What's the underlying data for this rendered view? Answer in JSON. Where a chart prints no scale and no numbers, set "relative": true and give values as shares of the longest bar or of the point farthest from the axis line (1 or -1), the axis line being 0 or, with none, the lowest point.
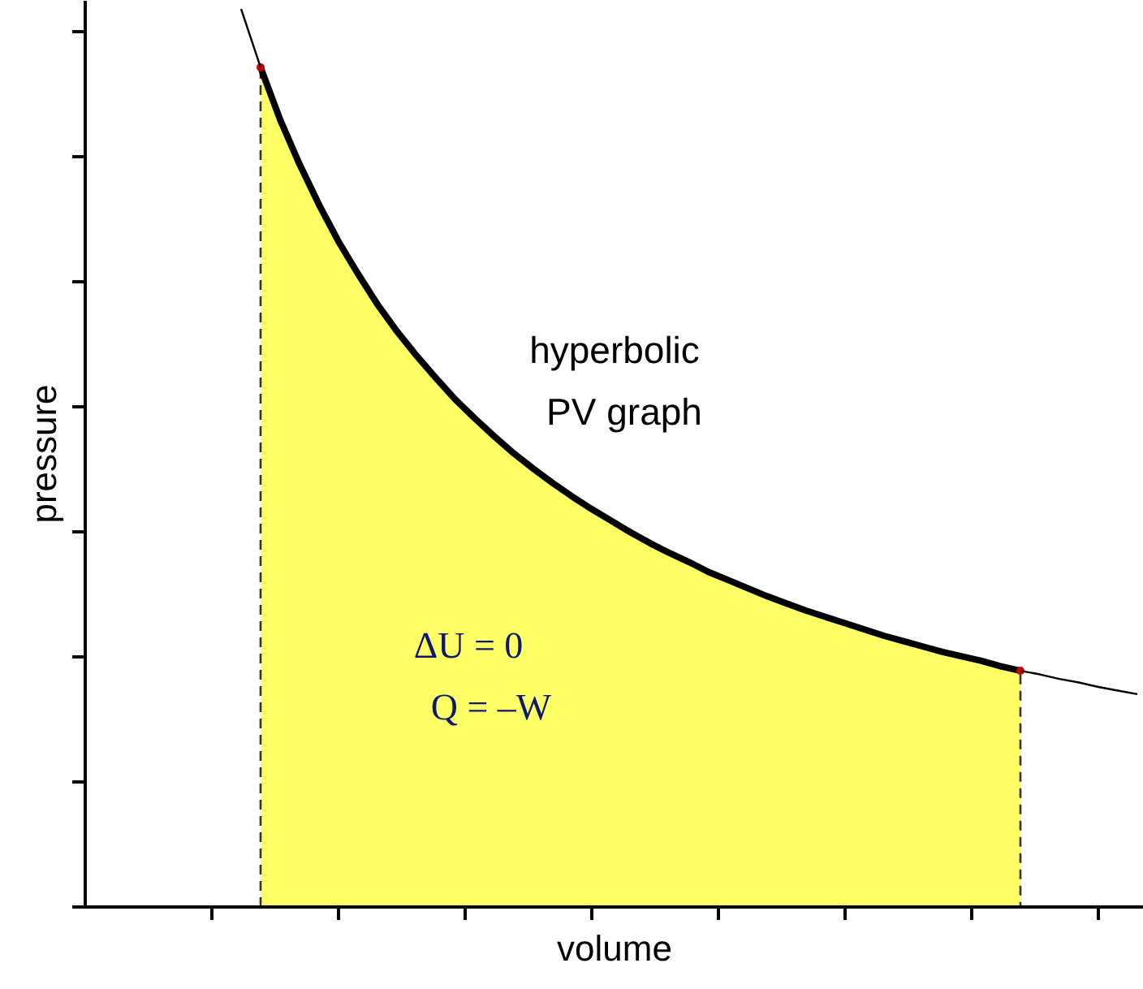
{
  "chart_data": {
    "type": "line",
    "relative": true,
    "xlabel": "volume",
    "ylabel": "pressure",
    "categories": [
      null,
      null,
      null,
      null,
      null,
      null,
      null,
      null,
      null,
      null,
      null,
      null,
      null,
      null,
      null,
      null,
      null,
      null,
      null,
      null,
      null,
      null,
      null,
      null,
      null,
      null,
      null,
      null,
      null,
      null,
      null,
      null,
      null,
      null,
      null,
      null,
      null,
      null,
      null,
      null,
      null,
      null,
      null,
      null,
      null,
      null,
      null
    ],
    "series": [
      {
        "type": "area",
        "color": "#ffff66",
        "values": [
          null,
          0.935,
          0.877,
          0.827,
          0.782,
          0.741,
          0.705,
          0.671,
          0.641,
          0.614,
          0.589,
          0.565,
          0.544,
          0.524,
          0.505,
          0.488,
          0.472,
          0.457,
          0.443,
          0.43,
          0.417,
          0.405,
          0.394,
          0.384,
          0.373,
          0.364,
          0.355,
          0.346,
          0.338,
          0.33,
          0.323,
          0.316,
          0.309,
          0.302,
          0.296,
          0.29,
          0.284,
          0.279,
          0.274,
          0.268,
          0.263,
          null,
          null,
          null,
          null,
          null,
          null
        ]
      },
      {
        "color": "#000000",
        "values": [
          1,
          0.935,
          null,
          null,
          null,
          null,
          null,
          null,
          null,
          null,
          null,
          null,
          null,
          null,
          null,
          null,
          null,
          null,
          null,
          null,
          null,
          null,
          null,
          null,
          null,
          null,
          null,
          null,
          null,
          null,
          null,
          null,
          null,
          null,
          null,
          null,
          null,
          null,
          null,
          null,
          0.263,
          0.259,
          0.254,
          0.25,
          0.245,
          0.241,
          0.237
        ]
      }
    ],
    "annotations": [
      "hyperbolic",
      "PV graph",
      "ΔU = 0",
      "Q = –W"
    ],
    "grid": false,
    "tick_labels": false
  }
}
